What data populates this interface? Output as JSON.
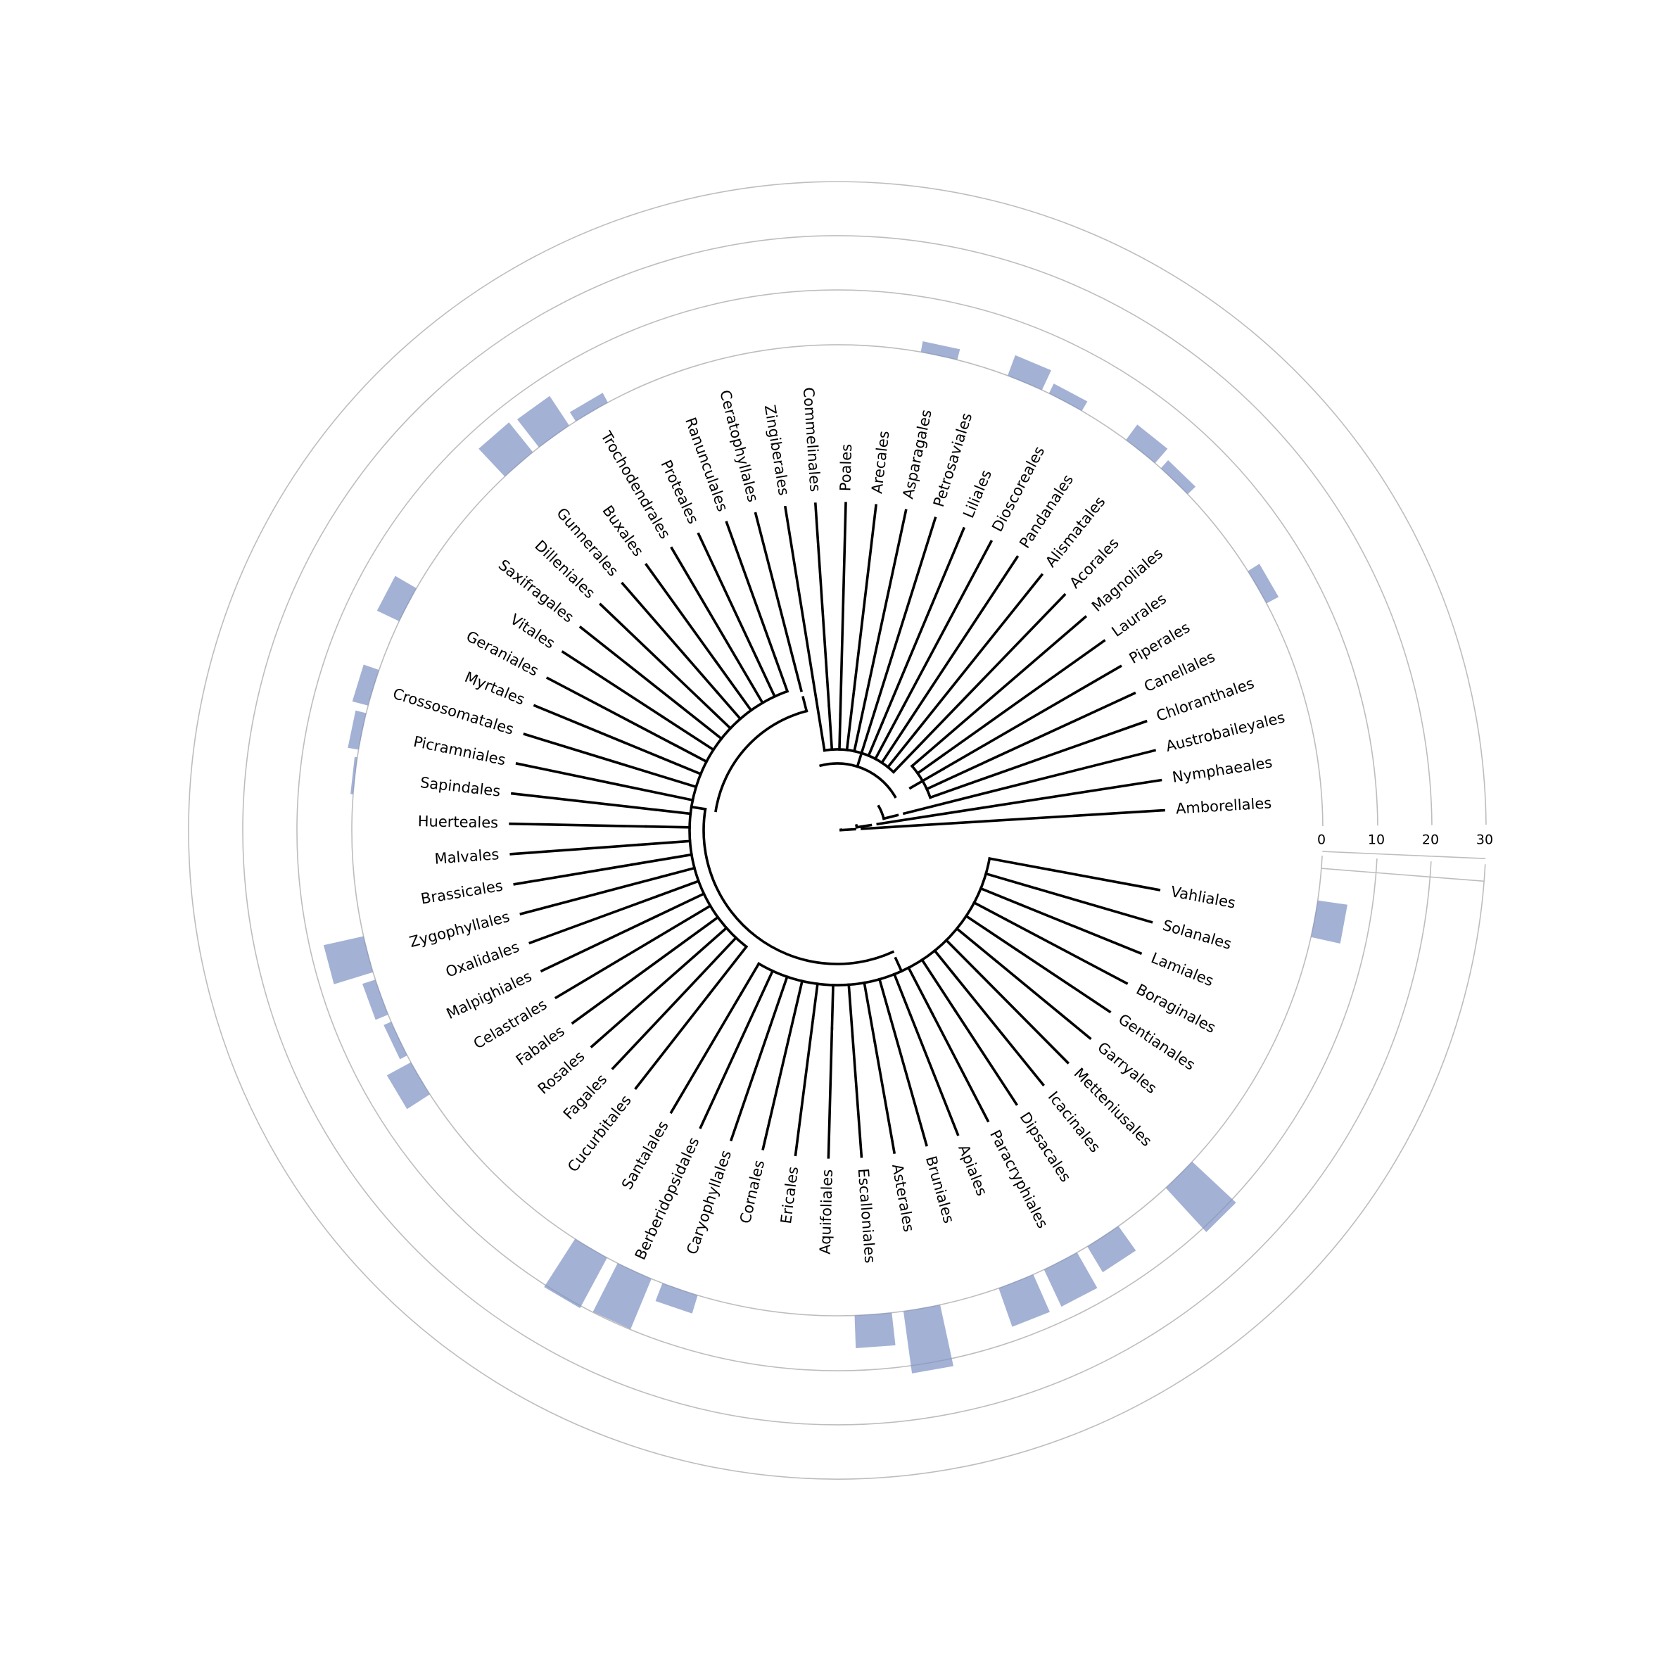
{
  "chart_data": {
    "type": "bar",
    "subtype": "circular-phylogeny-with-radial-bars",
    "title": "",
    "xlabel": "",
    "ylabel": "",
    "bar_color": "#8093c4",
    "ring_color": "#bdbdbd",
    "axis_ticks": [
      "0",
      "10",
      "20",
      "30"
    ],
    "ylim": [
      0,
      30
    ],
    "grid": true,
    "legend": "none",
    "tree_groups": [
      [
        "Amborellales"
      ],
      [
        "Nymphaeales"
      ],
      [
        "Austrobaileyales"
      ],
      [
        "Chloranthales",
        "Canellales",
        "Piperales",
        "Laurales",
        "Magnoliales"
      ],
      [
        "Acorales",
        "Alismatales",
        "Pandanales",
        "Dioscoreales",
        "Liliales",
        "Petrosaviales",
        "Asparagales",
        "Arecales",
        "Poales",
        "Commelinales",
        "Zingiberales"
      ],
      [
        "Ceratophyllales"
      ],
      [
        "Ranunculales",
        "Proteales",
        "Trochodendrales",
        "Buxales",
        "Gunnerales",
        "Dilleniales",
        "Saxifragales",
        "Vitales",
        "Geraniales",
        "Myrtales",
        "Crossosomatales",
        "Picramniales",
        "Sapindales",
        "Huerteales",
        "Malvales",
        "Brassicales",
        "Zygophyllales",
        "Oxalidales",
        "Malpighiales",
        "Celastrales",
        "Fabales",
        "Rosales",
        "Fagales",
        "Cucurbitales"
      ],
      [
        "Santalales",
        "Berberidopsidales",
        "Caryophyllales",
        "Cornales",
        "Ericales",
        "Aquifoliales",
        "Escalloniales",
        "Asterales",
        "Bruniales",
        "Apiales",
        "Paracryphiales",
        "Dipsacales",
        "Icacinales",
        "Metteniusales",
        "Garryales",
        "Gentianales",
        "Boraginales",
        "Lamiales",
        "Solanales",
        "Vahliales"
      ]
    ],
    "series": [
      {
        "categories": [
          "Amborellales",
          "Nymphaeales",
          "Austrobaileyales",
          "Chloranthales",
          "Canellales",
          "Piperales",
          "Laurales",
          "Magnoliales",
          "Acorales",
          "Alismatales",
          "Pandanales",
          "Dioscoreales",
          "Liliales",
          "Petrosaviales",
          "Asparagales",
          "Arecales",
          "Poales",
          "Commelinales",
          "Zingiberales",
          "Ceratophyllales",
          "Ranunculales",
          "Proteales",
          "Trochodendrales",
          "Buxales",
          "Gunnerales",
          "Dilleniales",
          "Saxifragales",
          "Vitales",
          "Geraniales",
          "Myrtales",
          "Crossosomatales",
          "Picramniales",
          "Sapindales",
          "Huerteales",
          "Malvales",
          "Brassicales",
          "Zygophyllales",
          "Oxalidales",
          "Malpighiales",
          "Celastrales",
          "Fabales",
          "Rosales",
          "Fagales",
          "Cucurbitales"
        ],
        "values": [
          0,
          0,
          0,
          0,
          0,
          2.5,
          0,
          0,
          2,
          3.5,
          0,
          2,
          4,
          0,
          2,
          0,
          0,
          0,
          0,
          0,
          0,
          0,
          2,
          6.5,
          7,
          0,
          0,
          0,
          4.5,
          0,
          3,
          2,
          0.5,
          0,
          0,
          0,
          7.5,
          2.5,
          1.5,
          5,
          0,
          0,
          0,
          0
        ]
      },
      {
        "categories": [
          "Santalales",
          "Berberidopsidales",
          "Caryophyllales",
          "Cornales",
          "Ericales",
          "Aquifoliales",
          "Escalloniales",
          "Asterales",
          "Bruniales",
          "Apiales",
          "Paracryphiales",
          "Dipsacales",
          "Icacinales",
          "Metteniusales",
          "Garryales",
          "Gentianales",
          "Boraginales",
          "Lamiales",
          "Solanales",
          "Vahliales"
        ],
        "values": [
          10.5,
          10,
          3.5,
          0,
          0,
          0,
          6,
          11.5,
          0,
          7.5,
          7.5,
          5.5,
          0,
          11,
          0,
          0,
          0,
          0,
          0,
          5.5
        ]
      }
    ]
  }
}
